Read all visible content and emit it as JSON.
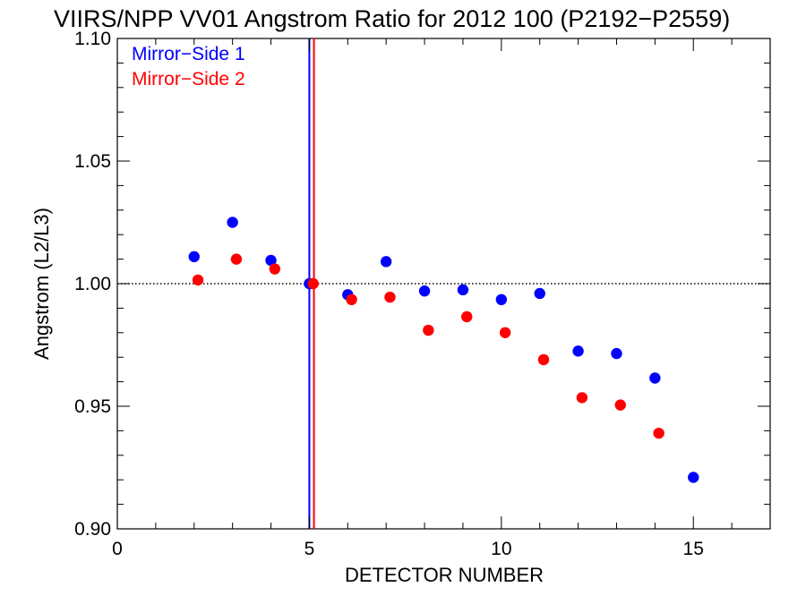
{
  "chart_data": {
    "type": "scatter",
    "title": "VIIRS/NPP VV01 Angstrom Ratio for 2012 100 (P2192−P2559)",
    "xlabel": "DETECTOR NUMBER",
    "ylabel": "Angstrom (L2/L3)",
    "xlim": [
      0,
      17
    ],
    "ylim": [
      0.9,
      1.1
    ],
    "x_ticks": [
      0,
      5,
      10,
      15
    ],
    "x_tick_labels": [
      "0",
      "5",
      "10",
      "15"
    ],
    "y_ticks": [
      0.9,
      0.95,
      1.0,
      1.05,
      1.1
    ],
    "y_tick_labels": [
      "0.90",
      "0.95",
      "1.00",
      "1.05",
      "1.10"
    ],
    "reference_line": {
      "y": 1.0,
      "style": "dotted",
      "color": "#000000"
    },
    "vertical_lines": [
      {
        "x": 5.0,
        "color": "#0000ff"
      },
      {
        "x": 5.12,
        "color": "#ff0000"
      }
    ],
    "legend_position": "top-left",
    "series": [
      {
        "name": "Mirror−Side 1",
        "color": "#0000ff",
        "x": [
          2,
          3,
          4,
          5,
          6,
          7,
          8,
          9,
          10,
          11,
          12,
          13,
          14,
          15
        ],
        "y": [
          1.011,
          1.025,
          1.0095,
          1.0,
          0.9955,
          1.009,
          0.997,
          0.9975,
          0.9935,
          0.996,
          0.9725,
          0.9715,
          0.9615,
          0.921
        ]
      },
      {
        "name": "Mirror−Side 2",
        "color": "#ff0000",
        "x": [
          2.1,
          3.1,
          4.1,
          5.1,
          6.1,
          7.1,
          8.1,
          9.1,
          10.1,
          11.1,
          12.1,
          13.1,
          14.1
        ],
        "y": [
          1.0015,
          1.01,
          1.006,
          1.0,
          0.9935,
          0.9945,
          0.981,
          0.9865,
          0.98,
          0.969,
          0.9535,
          0.9505,
          0.939
        ]
      }
    ]
  }
}
